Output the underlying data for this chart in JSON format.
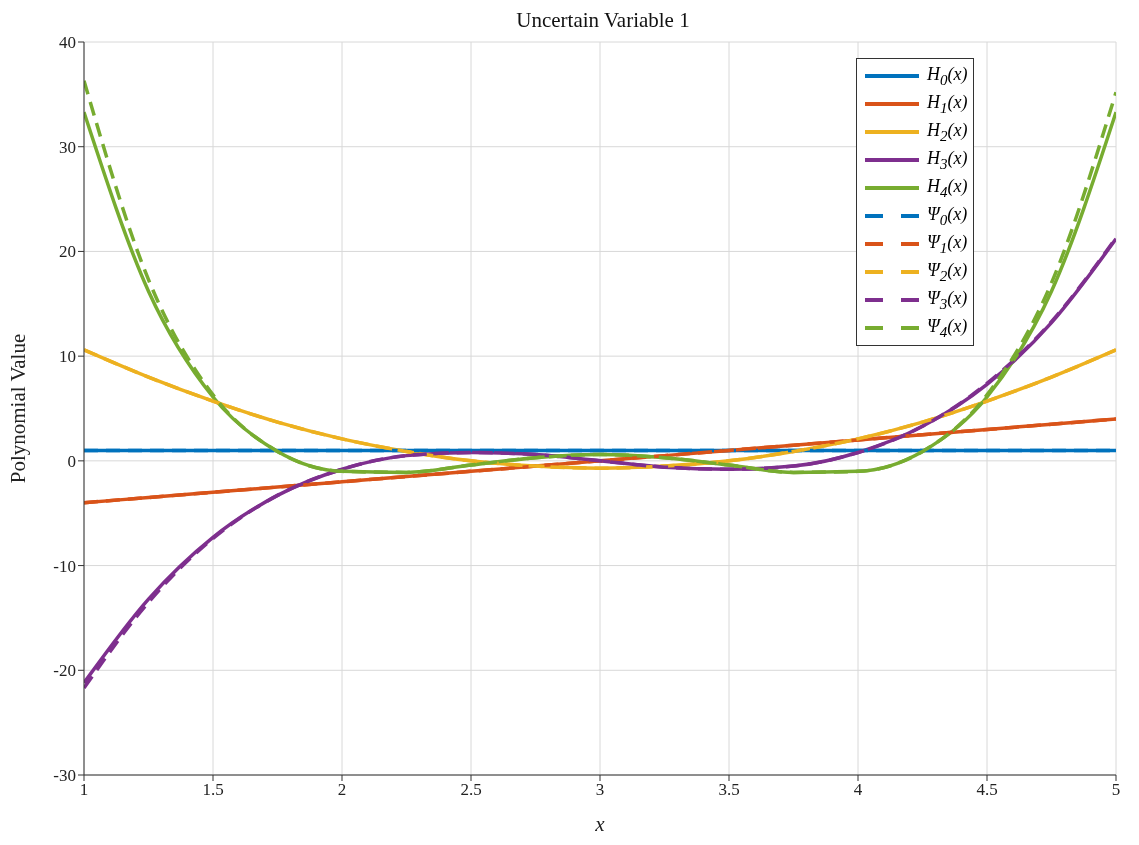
{
  "chart_data": {
    "type": "line",
    "title": "Uncertain Variable 1",
    "xlabel": "x",
    "ylabel": "Polynomial Value",
    "x": [
      1,
      1.25,
      1.5,
      1.75,
      2,
      2.25,
      2.5,
      2.75,
      3,
      3.25,
      3.5,
      3.75,
      4,
      4.25,
      4.5,
      4.75,
      5
    ],
    "xlim": [
      1,
      5
    ],
    "xticks": [
      1,
      1.5,
      2,
      2.5,
      3,
      3.5,
      4,
      4.5,
      5
    ],
    "ylim": [
      -30,
      40
    ],
    "yticks": [
      -30,
      -20,
      -10,
      0,
      10,
      20,
      30,
      40
    ],
    "grid": true,
    "legend": "top right",
    "marker": "none",
    "series": [
      {
        "name": "H$_{0}$(x)",
        "color": "#0072bd",
        "line_style": "solid",
        "values": [
          1,
          1,
          1,
          1,
          1,
          1,
          1,
          1,
          1,
          1,
          1,
          1,
          1,
          1,
          1,
          1,
          1
        ]
      },
      {
        "name": "H$_{1}$(x)",
        "color": "#d95319",
        "line_style": "solid",
        "values": [
          -4,
          -3.5,
          -3,
          -2.5,
          -2,
          -1.5,
          -1,
          -0.5,
          0,
          0.5,
          1,
          1.5,
          2,
          2.5,
          3,
          3.5,
          4
        ]
      },
      {
        "name": "H$_{2}$(x)",
        "color": "#edb120",
        "line_style": "solid",
        "values": [
          10.6,
          8,
          5.7,
          3.7,
          2.1,
          0.9,
          0,
          -0.5,
          -0.7,
          -0.5,
          0,
          0.9,
          2.1,
          3.7,
          5.7,
          8,
          10.6
        ]
      },
      {
        "name": "H$_{3}$(x)",
        "color": "#7e2f8e",
        "line_style": "solid",
        "values": [
          -21.2,
          -13.2,
          -7.3,
          -3.3,
          -0.8,
          0.5,
          0.8,
          0.6,
          0,
          -0.6,
          -0.8,
          -0.5,
          0.8,
          3.3,
          7.3,
          13.2,
          21.2
        ]
      },
      {
        "name": "H$_{4}$(x)",
        "color": "#77ac30",
        "line_style": "solid",
        "values": [
          33.3,
          16.2,
          6.1,
          0.9,
          -1,
          -1.1,
          -0.4,
          0.3,
          0.6,
          0.3,
          -0.4,
          -1.1,
          -1,
          0.9,
          6.1,
          16.2,
          33.3
        ]
      },
      {
        "name": "Ψ$_{0}$(x)",
        "color": "#0072bd",
        "line_style": "dashed",
        "values": [
          1,
          1,
          1,
          1,
          1,
          1,
          1,
          1,
          1,
          1,
          1,
          1,
          1,
          1,
          1,
          1,
          1
        ]
      },
      {
        "name": "Ψ$_{1}$(x)",
        "color": "#d95319",
        "line_style": "dashed",
        "values": [
          -4,
          -3.5,
          -3,
          -2.5,
          -2,
          -1.5,
          -1,
          -0.5,
          0,
          0.5,
          1,
          1.5,
          2,
          2.5,
          3,
          3.5,
          4
        ]
      },
      {
        "name": "Ψ$_{2}$(x)",
        "color": "#edb120",
        "line_style": "dashed",
        "values": [
          10.6,
          8,
          5.7,
          3.7,
          2.1,
          0.9,
          0,
          -0.5,
          -0.7,
          -0.5,
          0,
          0.9,
          2.1,
          3.7,
          5.7,
          8,
          10.6
        ]
      },
      {
        "name": "Ψ$_{3}$(x)",
        "color": "#7e2f8e",
        "line_style": "dashed",
        "values": [
          -21.7,
          -13.5,
          -7.4,
          -3.3,
          -0.8,
          0.5,
          0.8,
          0.6,
          0,
          -0.6,
          -0.8,
          -0.5,
          0.8,
          3.3,
          7.4,
          13.3,
          21.3
        ]
      },
      {
        "name": "Ψ$_{4}$(x)",
        "color": "#77ac30",
        "line_style": "dashed",
        "values": [
          36.3,
          17.3,
          6.3,
          0.9,
          -1,
          -1.1,
          -0.4,
          0.3,
          0.6,
          0.3,
          -0.4,
          -1.1,
          -1,
          0.9,
          6.3,
          17,
          35.2
        ]
      }
    ]
  }
}
